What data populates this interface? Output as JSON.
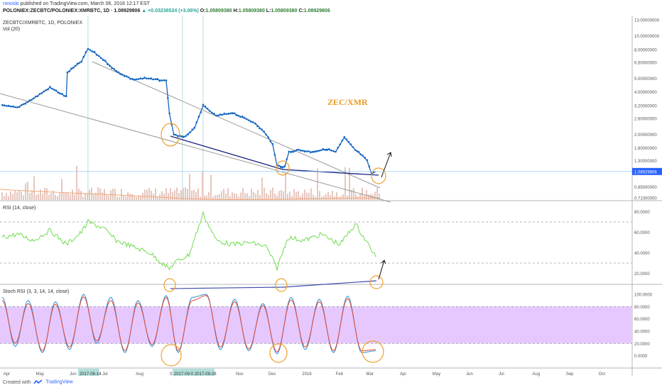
{
  "header": {
    "author": "ronoski",
    "published_text": "published on TradingView.com, March 06, 2018 12:17 EST",
    "symbol_line": "POLONIEX:ZECBTC/POLONIEX:XMRBTC, 1D",
    "last_price": "1.08929806",
    "change_text": "▲ +0.03236524 (+3.06%)",
    "open_label": "O:",
    "open_value": "1.05809380",
    "high_label": "H:",
    "high_value": "1.05809380",
    "low_label": "L:",
    "low_value": "1.05809380",
    "close_label": "C:",
    "close_value": "1.08929806"
  },
  "footer": {
    "created_with": "Created with",
    "brand": "TradingView"
  },
  "colors": {
    "price": "#1565c0",
    "trendline": "#999999",
    "support": "#1a237e",
    "rsi": "#6fdc52",
    "stoch_k": "#2f8fd6",
    "stoch_d": "#e34a33",
    "stoch_band": "#e6c8ff",
    "circle": "#f0a030",
    "annotation": "#e89a1e",
    "last_price_tag": "#2962ff",
    "volume": "#e6c7bf",
    "vol_ma": "#f2a675"
  },
  "chart_data": [
    {
      "type": "line",
      "pane": "price",
      "title": "ZECBTC/XMRBTC, 1D, POLONIEX",
      "volume_label": "Vol (20)",
      "annotation": "ZEC/XMR",
      "log_scale": true,
      "ylim": [
        0.7,
        13.0
      ],
      "y_ticks": [
        "13.00000000",
        "10.00000000",
        "8.00000000",
        "6.50000000",
        "5.00000000",
        "4.00000000",
        "3.20000000",
        "2.60000000",
        "2.00000000",
        "1.60000000",
        "1.30000000",
        "0.85000000",
        "0.71000000"
      ],
      "last_value_tag": "1.08929806",
      "x": [
        "2017-03-27",
        "2017-04-10",
        "2017-04-25",
        "2017-05-10",
        "2017-05-25",
        "2017-05-26",
        "2017-06-08",
        "2017-06-14",
        "2017-06-20",
        "2017-06-28",
        "2017-07-10",
        "2017-07-25",
        "2017-08-05",
        "2017-08-15",
        "2017-08-25",
        "2017-08-28",
        "2017-09-01",
        "2017-09-10",
        "2017-09-20",
        "2017-09-28",
        "2017-10-10",
        "2017-10-25",
        "2017-11-05",
        "2017-11-15",
        "2017-11-25",
        "2017-12-01",
        "2017-12-05",
        "2017-12-12",
        "2017-12-16",
        "2017-12-25",
        "2018-01-05",
        "2018-01-20",
        "2018-01-28",
        "2018-02-05",
        "2018-02-15",
        "2018-02-20",
        "2018-02-26",
        "2018-03-02",
        "2018-03-06"
      ],
      "values": [
        3.2,
        3.1,
        3.6,
        4.3,
        3.7,
        5.5,
        6.6,
        8.1,
        7.6,
        6.8,
        5.6,
        4.9,
        5.0,
        4.9,
        4.8,
        2.8,
        2.0,
        1.9,
        2.2,
        3.2,
        2.7,
        2.85,
        2.6,
        2.4,
        2.0,
        1.7,
        1.2,
        1.17,
        1.5,
        1.55,
        1.5,
        1.57,
        1.5,
        1.9,
        1.55,
        1.45,
        1.3,
        1.05,
        1.089
      ]
    },
    {
      "type": "line",
      "pane": "rsi",
      "title": "RSI (14, close)",
      "ylim": [
        10,
        90
      ],
      "y_ticks": [
        "80.0000",
        "60.0000",
        "40.0000",
        "20.0000"
      ],
      "dashed_levels": [
        70,
        30
      ],
      "x": [
        "2017-03-27",
        "2017-04-10",
        "2017-04-25",
        "2017-05-10",
        "2017-05-25",
        "2017-06-08",
        "2017-06-14",
        "2017-06-28",
        "2017-07-10",
        "2017-07-25",
        "2017-08-10",
        "2017-08-28",
        "2017-09-01",
        "2017-09-15",
        "2017-09-28",
        "2017-10-10",
        "2017-10-25",
        "2017-11-10",
        "2017-11-25",
        "2017-12-05",
        "2017-12-15",
        "2017-12-30",
        "2018-01-15",
        "2018-02-01",
        "2018-02-15",
        "2018-02-20",
        "2018-03-02",
        "2018-03-06"
      ],
      "values": [
        55,
        58,
        52,
        62,
        48,
        60,
        70,
        64,
        52,
        46,
        40,
        24,
        30,
        38,
        78,
        52,
        48,
        50,
        46,
        25,
        55,
        52,
        58,
        48,
        68,
        60,
        43,
        36
      ]
    },
    {
      "type": "line",
      "pane": "stoch_rsi",
      "title": "Stoch RSI (3, 3, 14, 14, close)",
      "ylim": [
        -20,
        115
      ],
      "y_ticks": [
        "100.0000",
        "80.0000",
        "60.0000",
        "40.0000",
        "20.0000",
        "0.0000"
      ],
      "band": [
        20,
        80
      ],
      "series": [
        {
          "name": "K",
          "x": [
            "2017-03-27",
            "2017-04-08",
            "2017-04-20",
            "2017-05-03",
            "2017-05-15",
            "2017-05-28",
            "2017-06-10",
            "2017-06-22",
            "2017-07-05",
            "2017-07-18",
            "2017-07-30",
            "2017-08-12",
            "2017-08-25",
            "2017-09-05",
            "2017-09-18",
            "2017-10-01",
            "2017-10-14",
            "2017-10-27",
            "2017-11-09",
            "2017-11-22",
            "2017-12-05",
            "2017-12-18",
            "2017-12-31",
            "2018-01-13",
            "2018-01-26",
            "2018-02-08",
            "2018-02-21",
            "2018-03-06"
          ],
          "values": [
            95,
            15,
            90,
            5,
            88,
            10,
            100,
            20,
            95,
            5,
            90,
            15,
            98,
            5,
            95,
            100,
            10,
            92,
            8,
            85,
            3,
            95,
            10,
            92,
            5,
            97,
            5,
            8
          ]
        },
        {
          "name": "D",
          "x": [
            "2017-03-27",
            "2017-04-08",
            "2017-04-20",
            "2017-05-03",
            "2017-05-15",
            "2017-05-28",
            "2017-06-10",
            "2017-06-22",
            "2017-07-05",
            "2017-07-18",
            "2017-07-30",
            "2017-08-12",
            "2017-08-25",
            "2017-09-05",
            "2017-09-18",
            "2017-10-01",
            "2017-10-14",
            "2017-10-27",
            "2017-11-09",
            "2017-11-22",
            "2017-12-05",
            "2017-12-18",
            "2017-12-31",
            "2018-01-13",
            "2018-01-26",
            "2018-02-08",
            "2018-02-21",
            "2018-03-06"
          ],
          "values": [
            90,
            20,
            85,
            8,
            84,
            14,
            96,
            24,
            90,
            8,
            86,
            18,
            95,
            8,
            90,
            98,
            14,
            88,
            11,
            82,
            6,
            91,
            14,
            88,
            8,
            93,
            8,
            10
          ]
        }
      ]
    }
  ],
  "time_axis": {
    "labels": [
      "Apr",
      "May",
      "Jun",
      "Jul",
      "Aug",
      "Sep",
      "Nov",
      "Dec",
      "2018",
      "Feb",
      "Mar",
      "Apr",
      "May",
      "Jun",
      "Jul",
      "Aug",
      "Sep",
      "Oct"
    ],
    "highlighted": [
      "2017-06-14",
      "2017-09-09",
      "2017-09-28"
    ]
  }
}
